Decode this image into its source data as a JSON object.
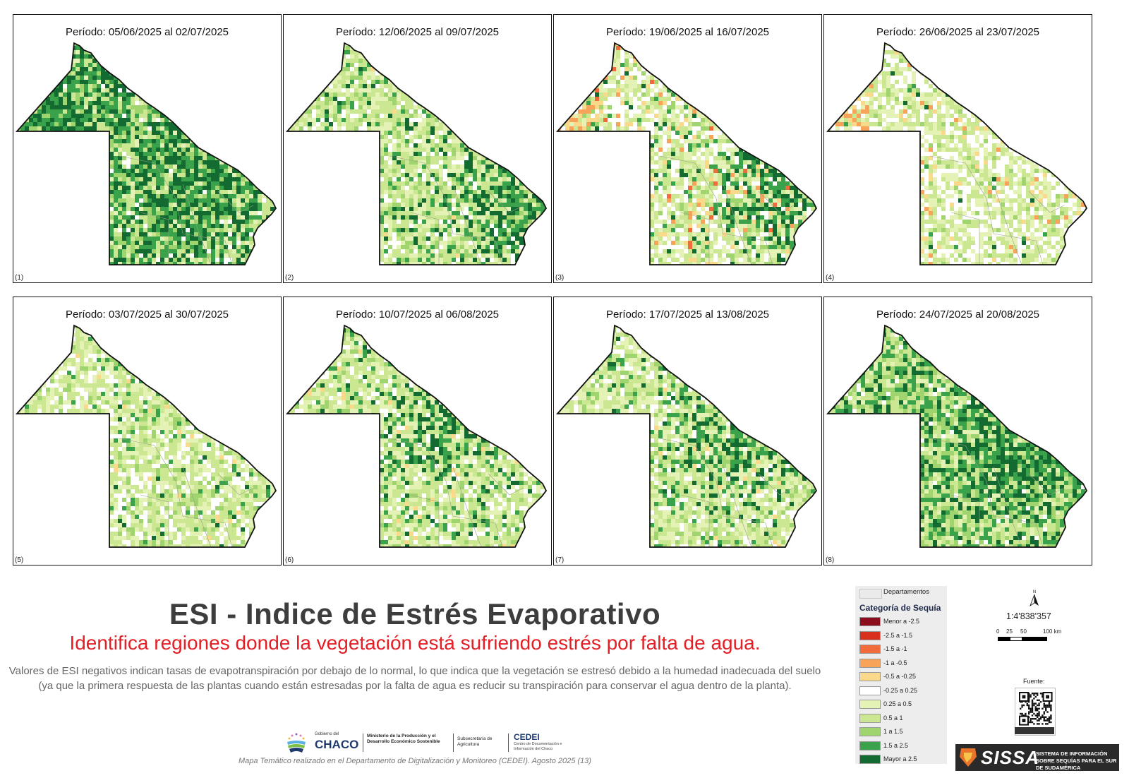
{
  "panels": [
    {
      "title": "Período: 05/06/2025 al 02/07/2025",
      "number": "(1)",
      "variant": 1
    },
    {
      "title": "Período: 12/06/2025 al 09/07/2025",
      "number": "(2)",
      "variant": 2
    },
    {
      "title": "Período: 19/06/2025 al 16/07/2025",
      "number": "(3)",
      "variant": 3
    },
    {
      "title": "Período: 26/06/2025 al 23/07/2025",
      "number": "(4)",
      "variant": 4
    },
    {
      "title": "Período: 03/07/2025 al 30/07/2025",
      "number": "(5)",
      "variant": 5
    },
    {
      "title": "Período: 10/07/2025 al 06/08/2025",
      "number": "(6)",
      "variant": 6
    },
    {
      "title": "Período: 17/07/2025 al 13/08/2025",
      "number": "(7)",
      "variant": 7
    },
    {
      "title": "Período: 24/07/2025 al 20/08/2025",
      "number": "(8)",
      "variant": 8
    }
  ],
  "title": "ESI - Indice de Estrés Evaporativo",
  "subtitle": "Identifica regiones donde la vegetación está sufriendo estrés por falta de agua.",
  "description": "Valores de ESI negativos indican tasas de evapotranspiración por debajo de lo normal, lo que indica que la vegetación se estresó debido a la humedad inadecuada del suelo (ya que la primera respuesta de las plantas cuando están estresadas por la falta de agua es reducir su transpiración para conservar el agua dentro de la planta).",
  "logos": {
    "gobierno_del": "Gobierno del",
    "chaco": "CHACO",
    "ministerio": "Ministerio de la Producción y el Desarrollo Económico Sostenible",
    "subsecretaria": "Subsecretaría de Agricultura",
    "cedei": "CEDEI",
    "cedei_sub": "Centro de Documentación e Información del Chaco"
  },
  "credit": "Mapa Temático realizado en el Departamento de Digitalización y Monitoreo (CEDEI). Agosto 2025 (13)",
  "legend": {
    "departments_label": "Departamentos",
    "heading": "Categoría de Sequía",
    "items": [
      {
        "label": "Menor a -2.5",
        "color": "#8b0d1e"
      },
      {
        "label": "-2.5 a -1.5",
        "color": "#d7301f"
      },
      {
        "label": "-1.5 a -1",
        "color": "#f26b3a"
      },
      {
        "label": "-1 a -0.5",
        "color": "#f8a35a"
      },
      {
        "label": "-0.5 a -0.25",
        "color": "#fbd98b"
      },
      {
        "label": "-0.25 a 0.25",
        "color": "#ffffff"
      },
      {
        "label": "0.25 a 0.5",
        "color": "#e4f2b6"
      },
      {
        "label": "0.5 a 1",
        "color": "#cbe792"
      },
      {
        "label": "1 a 1.5",
        "color": "#9fd46e"
      },
      {
        "label": "1.5 a 2.5",
        "color": "#3aa24a"
      },
      {
        "label": "Mayor a 2.5",
        "color": "#136b31"
      }
    ]
  },
  "north_label": "N",
  "scale": {
    "ratio": "1:4'838'357",
    "ticks": [
      "0",
      "25",
      "50",
      "100 km"
    ]
  },
  "source_label": "Fuente:",
  "sissa": {
    "name": "SISSA",
    "description": "SISTEMA DE INFORMACIÓN SOBRE SEQUÍAS PARA EL SUR DE SUDAMÉRICA"
  }
}
